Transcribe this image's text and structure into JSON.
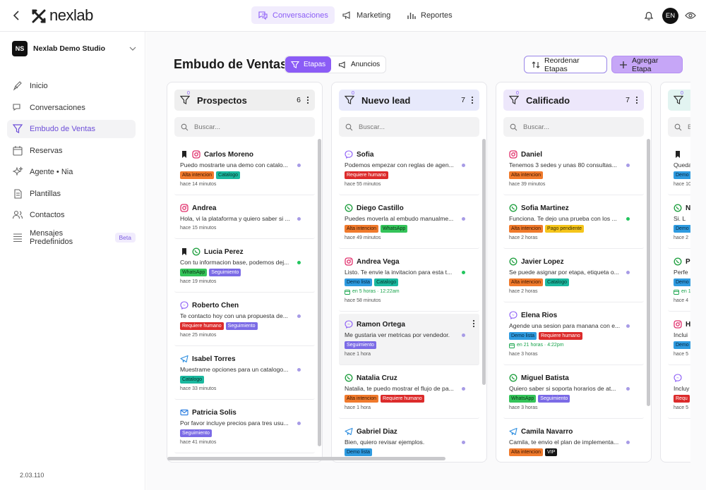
{
  "header": {
    "logo": "nexlab",
    "nav": [
      {
        "label": "Conversaciones",
        "active": true
      },
      {
        "label": "Marketing"
      },
      {
        "label": "Reportes"
      }
    ],
    "avatar": "EN"
  },
  "sidebar": {
    "workspace": {
      "initials": "NS",
      "name": "Nexlab Demo Studio"
    },
    "menu": [
      {
        "label": "Inicio"
      },
      {
        "label": "Conversaciones"
      },
      {
        "label": "Embudo de Ventas",
        "active": true
      },
      {
        "label": "Reservas"
      },
      {
        "label": "Agente • Nia"
      },
      {
        "label": "Plantillas"
      },
      {
        "label": "Contactos"
      },
      {
        "label": "Mensajes Predefinidos",
        "badge": "Beta"
      }
    ],
    "version": "2.03.110"
  },
  "main": {
    "title": "Embudo de Ventas",
    "tabs": [
      {
        "label": "Etapas",
        "active": true
      },
      {
        "label": "Anuncios"
      }
    ],
    "buttons": [
      "Reordenar Etapas",
      "Agregar Etapa"
    ],
    "columns": [
      {
        "name": "Prospectos",
        "count": "6",
        "filters": "0",
        "search": "Buscar...",
        "color": "#efefef",
        "scroll": [
          0,
          1
        ],
        "cards": [
          {
            "name": "Carlos Moreno",
            "bookmark": true,
            "channel": "instagram",
            "message": "Puedo mostrarte una demo con catalo...",
            "tags": [
              {
                "label": "Alta intencion",
                "bg": "#f07a2c",
                "fg": "#3a1500"
              },
              {
                "label": "Catalogo",
                "bg": "#1bb89f",
                "fg": "#06342c"
              }
            ],
            "time": "hace 14 minutos",
            "dot": "#a79be6"
          },
          {
            "name": "Andrea",
            "channel": "instagram",
            "message": "Hola, vi la plataforma y quiero saber si ...",
            "tags": [],
            "time": "hace 15 minutos",
            "dot": "#a79be6"
          },
          {
            "name": "Lucia Perez",
            "bookmark": true,
            "channel": "whatsapp",
            "message": "Con tu informacion base, podemos dej...",
            "tags": [
              {
                "label": "WhatsApp",
                "bg": "#35c45a",
                "fg": "#0b3316"
              },
              {
                "label": "Seguimiento",
                "bg": "#7b6be6",
                "fg": "#ffffff"
              }
            ],
            "time": "hace 19 minutos",
            "dot": "#22c55e"
          },
          {
            "name": "Roberto Chen",
            "channel": "messenger",
            "message": "Te contacto hoy con una propuesta de...",
            "tags": [
              {
                "label": "Requiere humano",
                "bg": "#dc2b2b",
                "fg": "#ffffff"
              },
              {
                "label": "Seguimiento",
                "bg": "#7b6be6",
                "fg": "#ffffff"
              }
            ],
            "time": "hace 25 minutos",
            "dot": "#a79be6"
          },
          {
            "name": "Isabel Torres",
            "channel": "telegram",
            "message": "Muestrame opciones para un catalogo...",
            "tags": [
              {
                "label": "Catalogo",
                "bg": "#1bb89f",
                "fg": "#06342c"
              }
            ],
            "time": "hace 33 minutos",
            "dot": "#a79be6"
          },
          {
            "name": "Patricia Solis",
            "channel": "email",
            "message": "Por favor incluye precios para tres usu...",
            "tags": [
              {
                "label": "Seguimiento",
                "bg": "#7b6be6",
                "fg": "#ffffff"
              }
            ],
            "time": "hace 41 minutos",
            "dot": "#a79be6"
          }
        ]
      },
      {
        "name": "Nuevo lead",
        "count": "7",
        "filters": "0",
        "search": "Buscar...",
        "color": "#e7e9fb",
        "scroll": [
          0,
          0.8
        ],
        "cards": [
          {
            "name": "Sofia",
            "channel": "messenger",
            "message": "Podemos empezar con reglas de agen...",
            "tags": [
              {
                "label": "Requiere humano",
                "bg": "#dc2b2b",
                "fg": "#ffffff"
              }
            ],
            "time": "hace 55 minutos",
            "dot": "#a79be6"
          },
          {
            "name": "Diego Castillo",
            "channel": "whatsapp",
            "message": "Puedes moverla al embudo manualme...",
            "tags": [
              {
                "label": "Alta intencion",
                "bg": "#f07a2c",
                "fg": "#3a1500"
              },
              {
                "label": "WhatsApp",
                "bg": "#35c45a",
                "fg": "#0b3316"
              }
            ],
            "time": "hace 49 minutos",
            "dot": "#a79be6"
          },
          {
            "name": "Andrea Vega",
            "channel": "instagram",
            "message": "Listo. Te envie la invitacion para esta t...",
            "tags": [
              {
                "label": "Demo lista",
                "bg": "#2f9be0",
                "fg": "#06263d"
              },
              {
                "label": "Catalogo",
                "bg": "#1bb89f",
                "fg": "#06342c"
              }
            ],
            "extra": "en 5 horas · 12:22am",
            "time": "hace 58 minutos",
            "dot": "#22c55e"
          },
          {
            "name": "Ramon Ortega",
            "channel": "messenger",
            "highlight": true,
            "message": "Me gustaria ver metricas por vendedor.",
            "tags": [
              {
                "label": "Seguimiento",
                "bg": "#7b6be6",
                "fg": "#ffffff"
              }
            ],
            "time": "hace 1 hora",
            "dot": "#a79be6"
          },
          {
            "name": "Natalia Cruz",
            "channel": "whatsapp",
            "message": "Natalia, te puedo mostrar el flujo de pa...",
            "tags": [
              {
                "label": "Alta intencion",
                "bg": "#f07a2c",
                "fg": "#3a1500"
              },
              {
                "label": "Requiere humano",
                "bg": "#dc2b2b",
                "fg": "#ffffff"
              }
            ],
            "time": "hace 1 hora",
            "dot": "#a79be6"
          },
          {
            "name": "Gabriel Diaz",
            "channel": "telegram",
            "message": "Bien, quiero revisar ejemplos.",
            "tags": [
              {
                "label": "Demo lista",
                "bg": "#2f9be0",
                "fg": "#06263d"
              }
            ],
            "dot": "#a79be6"
          }
        ]
      },
      {
        "name": "Calificado",
        "count": "7",
        "filters": "0",
        "search": "Buscar...",
        "color": "#ede7fb",
        "scroll": [
          0,
          0.87
        ],
        "cards": [
          {
            "name": "Daniel",
            "channel": "instagram",
            "message": "Tenemos 3 sedes y unas 80 consultas...",
            "tags": [
              {
                "label": "Alta intencion",
                "bg": "#f07a2c",
                "fg": "#3a1500"
              }
            ],
            "time": "hace 39 minutos",
            "dot": "#a79be6"
          },
          {
            "name": "Sofia Martinez",
            "channel": "whatsapp",
            "message": "Funciona. Te dejo una prueba con los ...",
            "tags": [
              {
                "label": "Alta intencion",
                "bg": "#f07a2c",
                "fg": "#3a1500"
              },
              {
                "label": "Pago pendiente",
                "bg": "#f5c51b",
                "fg": "#3a2c00"
              }
            ],
            "time": "hace 2 horas",
            "dot": "#22c55e"
          },
          {
            "name": "Javier Lopez",
            "channel": "whatsapp",
            "message": "Se puede asignar por etapa, etiqueta o...",
            "tags": [
              {
                "label": "Alta intencion",
                "bg": "#f07a2c",
                "fg": "#3a1500"
              },
              {
                "label": "Catalogo",
                "bg": "#1bb89f",
                "fg": "#06342c"
              }
            ],
            "time": "hace 2 horas",
            "dot": "#a79be6"
          },
          {
            "name": "Elena Rios",
            "channel": "messenger",
            "message": "Agende una sesion para manana con e...",
            "tags": [
              {
                "label": "Demo lista",
                "bg": "#2f9be0",
                "fg": "#06263d"
              },
              {
                "label": "Requiere humano",
                "bg": "#dc2b2b",
                "fg": "#ffffff"
              }
            ],
            "extra": "en 21 horas · 4:22pm",
            "time": "hace 3 horas",
            "dot": "#a79be6"
          },
          {
            "name": "Miguel Batista",
            "channel": "whatsapp",
            "message": "Quiero saber si soporta horarios de at...",
            "tags": [
              {
                "label": "WhatsApp",
                "bg": "#35c45a",
                "fg": "#0b3316"
              },
              {
                "label": "Seguimiento",
                "bg": "#7b6be6",
                "fg": "#ffffff"
              }
            ],
            "time": "hace 3 horas",
            "dot": "#a79be6"
          },
          {
            "name": "Camila Navarro",
            "channel": "telegram",
            "message": "Camila, te envio el plan de implementa...",
            "tags": [
              {
                "label": "Alta intencion",
                "bg": "#f07a2c",
                "fg": "#3a1500"
              },
              {
                "label": "VIP",
                "bg": "#151515",
                "fg": "#ffffff"
              }
            ],
            "dot": "#a79be6"
          }
        ]
      },
      {
        "filters": "0",
        "search": "B",
        "color": "#e2f4f1",
        "cards": [
          {
            "bookmark": true,
            "message": "Queda",
            "tags": [
              {
                "label": "Demo",
                "bg": "#2f9be0",
                "fg": "#06263d"
              }
            ],
            "time": "hace 10"
          },
          {
            "name": "N",
            "channel": "whatsapp",
            "message": "Si. L",
            "tags": [
              {
                "label": "Demo",
                "bg": "#2f9be0",
                "fg": "#06263d"
              }
            ],
            "time": "hace 2"
          },
          {
            "name": "P",
            "channel": "whatsapp",
            "message": "Perfe",
            "tags": [
              {
                "label": "Demo",
                "bg": "#2f9be0",
                "fg": "#06263d"
              }
            ],
            "extra": "en 1",
            "time": "hace 4"
          },
          {
            "name": "H",
            "channel": "instagram",
            "message": "Inclui",
            "tags": [
              {
                "label": "Demo",
                "bg": "#2f9be0",
                "fg": "#06263d"
              }
            ],
            "time": "hace 5"
          },
          {
            "channel": "messenger",
            "message": "Incluy",
            "tags": [
              {
                "label": "Requ",
                "bg": "#dc2b2b",
                "fg": "#ffffff"
              }
            ],
            "time": "hace 5"
          }
        ]
      }
    ]
  }
}
